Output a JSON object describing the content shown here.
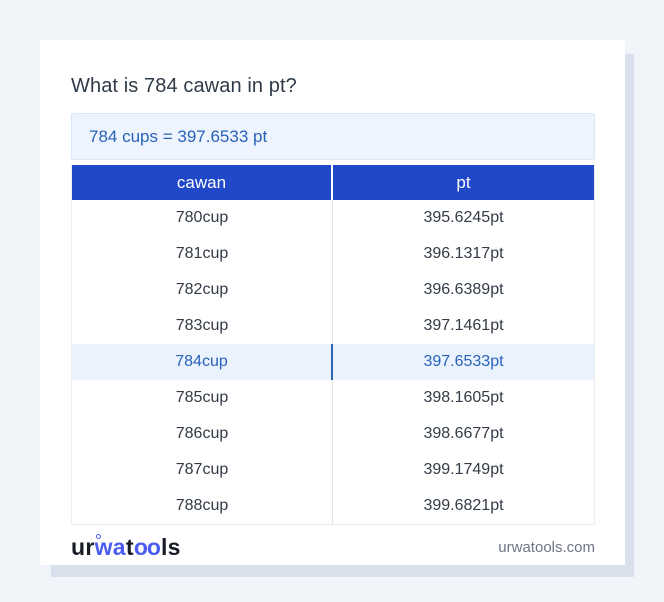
{
  "card": {
    "title": "What is 784 cawan in pt?",
    "answer": "784 cups = 397.6533 pt"
  },
  "table": {
    "headers": [
      "cawan",
      "pt"
    ],
    "rows": [
      {
        "cawan": "780cup",
        "pt": "395.6245pt",
        "highlight": false
      },
      {
        "cawan": "781cup",
        "pt": "396.1317pt",
        "highlight": false
      },
      {
        "cawan": "782cup",
        "pt": "396.6389pt",
        "highlight": false
      },
      {
        "cawan": "783cup",
        "pt": "397.1461pt",
        "highlight": false
      },
      {
        "cawan": "784cup",
        "pt": "397.6533pt",
        "highlight": true
      },
      {
        "cawan": "785cup",
        "pt": "398.1605pt",
        "highlight": false
      },
      {
        "cawan": "786cup",
        "pt": "398.6677pt",
        "highlight": false
      },
      {
        "cawan": "787cup",
        "pt": "399.1749pt",
        "highlight": false
      },
      {
        "cawan": "788cup",
        "pt": "399.6821pt",
        "highlight": false
      }
    ]
  },
  "footer": {
    "logo": {
      "ur": "ur",
      "wa": "wa",
      "t": "t",
      "oo": "oo",
      "ls": "ls"
    },
    "domain": "urwatools.com"
  },
  "colors": {
    "header_blue": "#2148c8",
    "accent_blue": "#2a62b8",
    "highlight_row_bg": "#e9f2fd",
    "highlight_divider": "#2b63b6",
    "answer_box_bg": "#edf4fd",
    "answer_box_border": "#d9e8f8",
    "logo_blue": "#4b5cf0",
    "page_bg": "#f1f4f9",
    "card_shadow": "#d9dfeb",
    "body_text": "#333b46",
    "muted_text": "#6e7686"
  }
}
